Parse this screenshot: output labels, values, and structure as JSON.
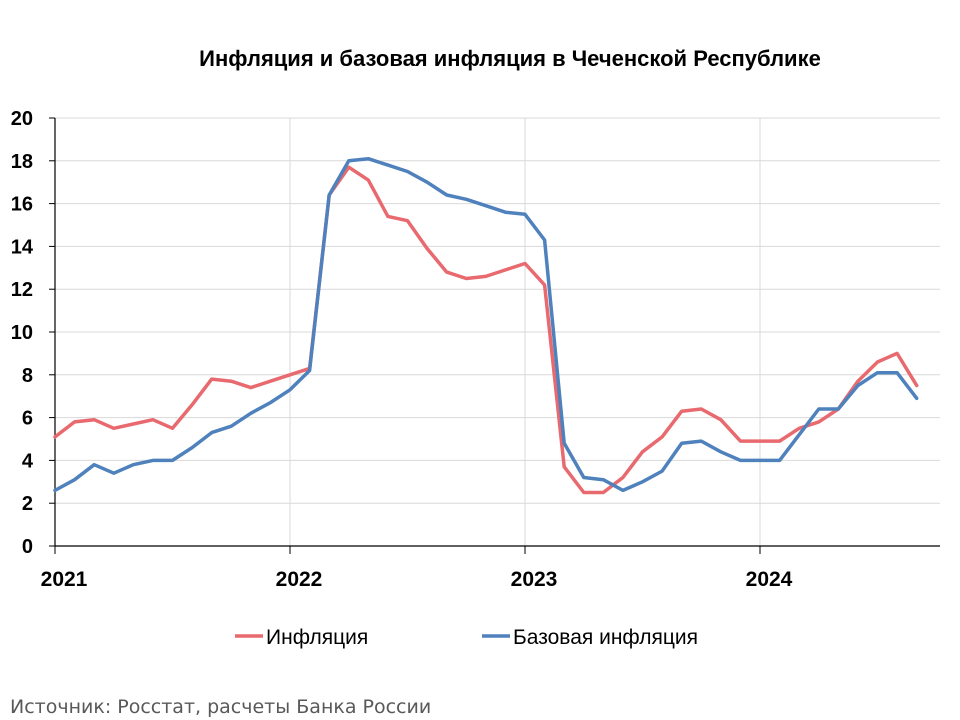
{
  "chart_data": {
    "type": "line",
    "title": "Инфляция и базовая инфляция в Чеченской Республике",
    "source": "Источник: Росстат, расчеты Банка России",
    "xlabel": "",
    "ylabel": "",
    "ylim": [
      0,
      20
    ],
    "yticks": [
      "0",
      "2",
      "4",
      "6",
      "8",
      "10",
      "12",
      "14",
      "16",
      "18",
      "20"
    ],
    "xticks": [
      "2021",
      "2022",
      "2023",
      "2024"
    ],
    "grid": true,
    "legend_position": "bottom",
    "x_start": "2021-01",
    "x_end": "2024-09",
    "series": [
      {
        "name": "Инфляция",
        "color": "#E8696E",
        "values": [
          5.1,
          5.8,
          5.9,
          5.5,
          5.7,
          5.9,
          5.5,
          6.6,
          7.8,
          7.7,
          7.4,
          7.7,
          8.0,
          8.3,
          16.4,
          17.7,
          17.1,
          15.4,
          15.2,
          13.9,
          12.8,
          12.5,
          12.6,
          12.9,
          13.2,
          12.2,
          3.7,
          2.5,
          2.5,
          3.2,
          4.4,
          5.1,
          6.3,
          6.4,
          5.9,
          4.9,
          4.9,
          4.9,
          5.5,
          5.8,
          6.4,
          7.7,
          8.6,
          9.0,
          7.5
        ]
      },
      {
        "name": "Базовая инфляция",
        "color": "#4F81BD",
        "values": [
          2.6,
          3.1,
          3.8,
          3.4,
          3.8,
          4.0,
          4.0,
          4.6,
          5.3,
          5.6,
          6.2,
          6.7,
          7.3,
          8.2,
          16.4,
          18.0,
          18.1,
          17.8,
          17.5,
          17.0,
          16.4,
          16.2,
          15.9,
          15.6,
          15.5,
          14.3,
          4.8,
          3.2,
          3.1,
          2.6,
          3.0,
          3.5,
          4.8,
          4.9,
          4.4,
          4.0,
          4.0,
          4.0,
          5.2,
          6.4,
          6.4,
          7.5,
          8.1,
          8.1,
          6.9
        ]
      }
    ]
  }
}
